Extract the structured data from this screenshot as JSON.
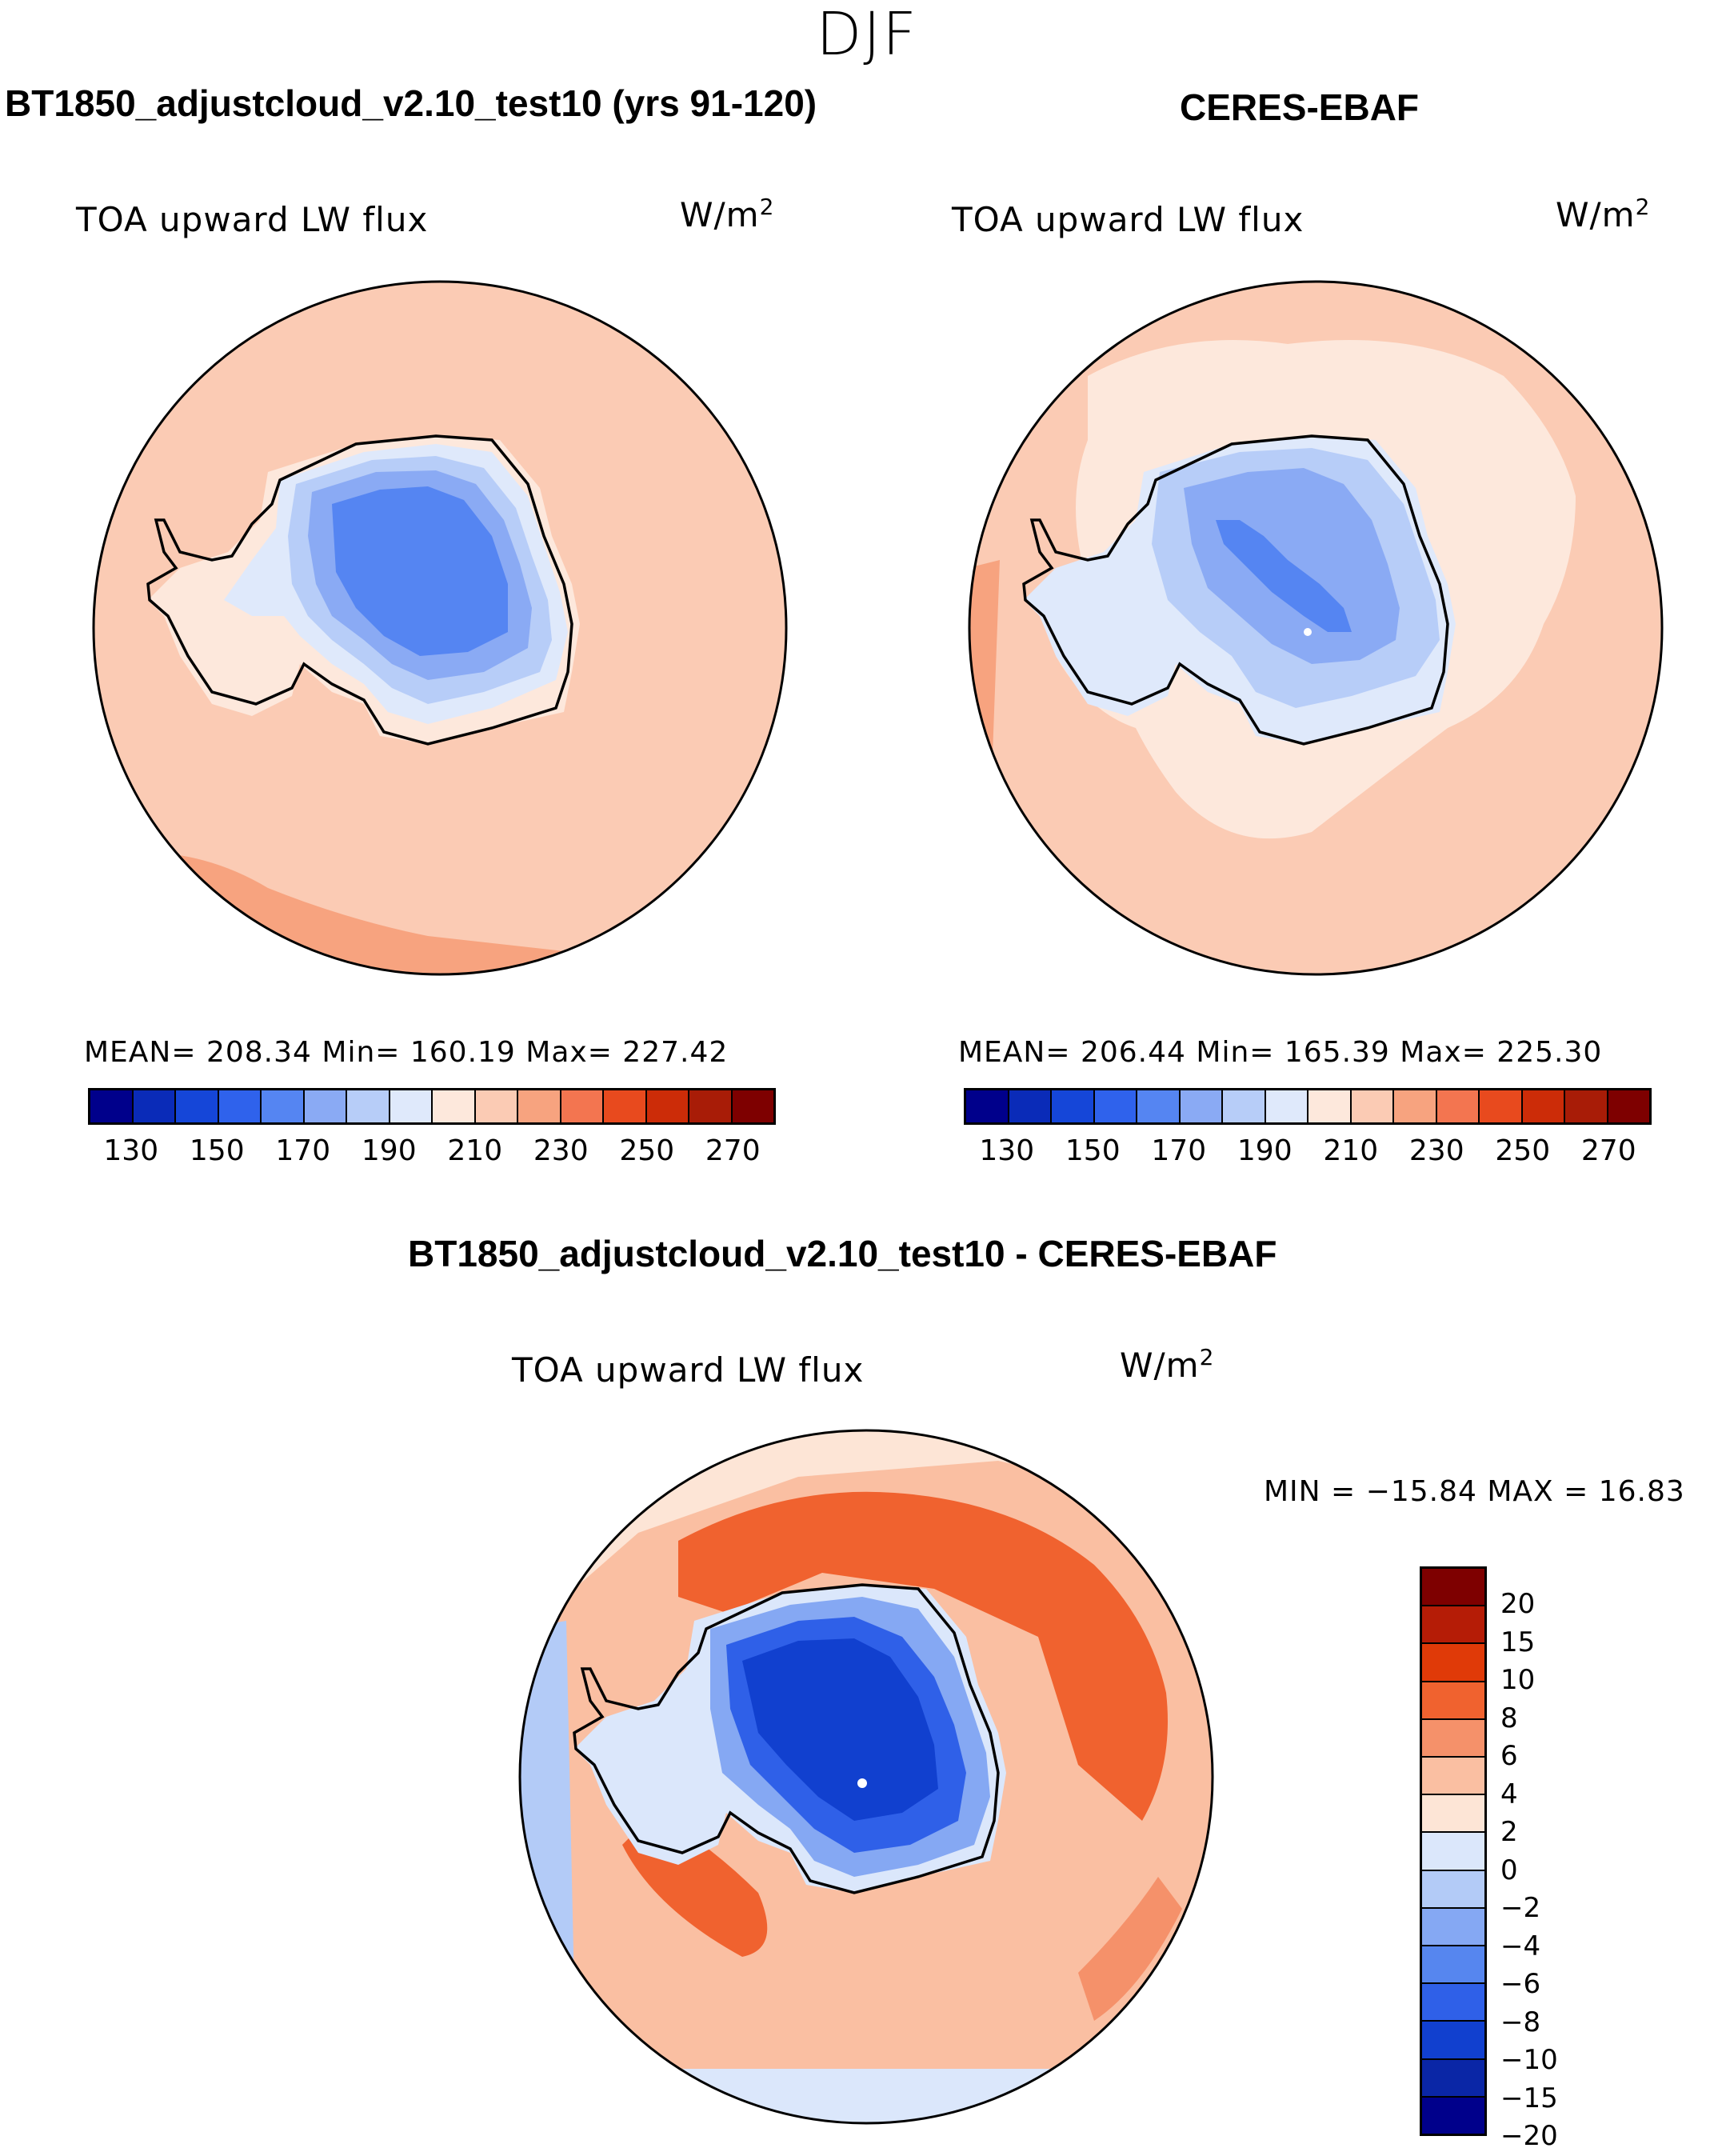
{
  "season": "DJF",
  "panels": {
    "model": {
      "title": "BT1850_adjustcloud_v2.10_test10 (yrs 91-120)",
      "variable": "TOA upward LW flux",
      "units": "W/m",
      "units_exp": "2",
      "stats": "MEAN= 208.34   Min= 160.19   Max= 227.42"
    },
    "obs": {
      "title": "CERES-EBAF",
      "variable": "TOA upward LW flux",
      "units": "W/m",
      "units_exp": "2",
      "stats": "MEAN= 206.44   Min= 165.39   Max= 225.30"
    },
    "diff": {
      "title": "BT1850_adjustcloud_v2.10_test10 - CERES-EBAF",
      "variable": "TOA upward LW flux",
      "units": "W/m",
      "units_exp": "2",
      "stats": "MIN = −15.84 MAX =   16.83"
    }
  },
  "colorbars": {
    "field": {
      "colors": [
        "#00008b",
        "#0a2bb8",
        "#1546d8",
        "#2f62ec",
        "#5585f2",
        "#8aaaf4",
        "#b7cdf8",
        "#dfe9fb",
        "#fde8dc",
        "#fbcbb4",
        "#f7a37f",
        "#f37550",
        "#e84a1e",
        "#cc2c08",
        "#a81c07",
        "#7e0000"
      ],
      "labels": [
        "130",
        "150",
        "170",
        "190",
        "210",
        "230",
        "250",
        "270"
      ]
    },
    "diff": {
      "colors": [
        "#7e0000",
        "#b51c06",
        "#e03a08",
        "#f0622f",
        "#f5916a",
        "#fabfa2",
        "#fde5d6",
        "#dbe7fb",
        "#b3cbf7",
        "#85a8f3",
        "#5686ef",
        "#2f60e8",
        "#1140cf",
        "#0a26a6",
        "#00008b"
      ],
      "labels": [
        "20",
        "15",
        "10",
        "8",
        "6",
        "4",
        "2",
        "0",
        "−2",
        "−4",
        "−6",
        "−8",
        "−10",
        "−15",
        "−20"
      ]
    }
  }
}
